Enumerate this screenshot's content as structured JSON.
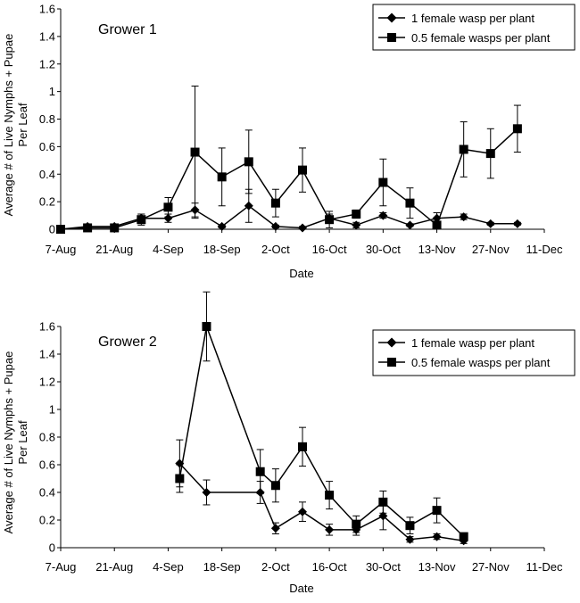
{
  "chart_data": [
    {
      "type": "line",
      "title": "Grower 1",
      "xlabel": "Date",
      "ylabel": "Average # of Live Nymphs + Pupae Per Leaf",
      "ylabel_lines": [
        "Average # of Live Nymphs + Pupae",
        "Per Leaf"
      ],
      "ylim": [
        0,
        1.6
      ],
      "yticks": [
        0,
        0.2,
        0.4,
        0.6,
        0.8,
        1,
        1.2,
        1.4,
        1.6
      ],
      "ytick_labels": [
        "0",
        "0.2",
        "0.4",
        "0.6",
        "0.8",
        "1",
        "1.2",
        "1.4",
        "1.6"
      ],
      "xticks": [
        "7-Aug",
        "21-Aug",
        "4-Sep",
        "18-Sep",
        "2-Oct",
        "16-Oct",
        "30-Oct",
        "13-Nov",
        "27-Nov",
        "11-Dec"
      ],
      "grid": false,
      "legend_position": "top-right",
      "series": [
        {
          "name": "1 female wasp per plant",
          "marker": "diamond",
          "x": [
            "7-Aug",
            "14-Aug",
            "21-Aug",
            "28-Aug",
            "4-Sep",
            "11-Sep",
            "18-Sep",
            "25-Sep",
            "2-Oct",
            "9-Oct",
            "16-Oct",
            "23-Oct",
            "30-Oct",
            "6-Nov",
            "13-Nov",
            "20-Nov",
            "27-Nov",
            "4-Dec",
            "11-Dec"
          ],
          "y": [
            0.0,
            0.02,
            0.02,
            0.08,
            0.08,
            0.14,
            0.02,
            0.17,
            0.02,
            0.01,
            0.08,
            0.03,
            0.1,
            0.03,
            0.08,
            0.09,
            0.04,
            0.04,
            null
          ],
          "err": [
            0.0,
            0.01,
            0.01,
            0.03,
            0.03,
            0.05,
            0.01,
            0.12,
            0.01,
            0.01,
            0.03,
            0.02,
            0.02,
            0.01,
            0.04,
            0.02,
            0.01,
            0.01,
            null
          ]
        },
        {
          "name": "0.5 female wasps per plant",
          "marker": "square",
          "x": [
            "7-Aug",
            "14-Aug",
            "21-Aug",
            "28-Aug",
            "4-Sep",
            "11-Sep",
            "18-Sep",
            "25-Sep",
            "2-Oct",
            "9-Oct",
            "16-Oct",
            "23-Oct",
            "30-Oct",
            "6-Nov",
            "13-Nov",
            "20-Nov",
            "27-Nov",
            "4-Dec",
            "11-Dec"
          ],
          "y": [
            0.0,
            0.01,
            0.01,
            0.07,
            0.16,
            0.56,
            0.38,
            0.49,
            0.19,
            0.43,
            0.07,
            0.11,
            0.34,
            0.19,
            0.03,
            0.58,
            0.55,
            0.73,
            null
          ],
          "err": [
            0.0,
            0.01,
            0.01,
            0.04,
            0.07,
            0.48,
            0.21,
            0.23,
            0.1,
            0.16,
            0.06,
            0.03,
            0.17,
            0.11,
            0.05,
            0.2,
            0.18,
            0.17,
            null
          ]
        }
      ]
    },
    {
      "type": "line",
      "title": "Grower 2",
      "xlabel": "Date",
      "ylabel": "Average # of Live Nymphs + Pupae Per Leaf",
      "ylabel_lines": [
        "Average # of Live Nymphs + Pupae",
        "Per Leaf"
      ],
      "ylim": [
        0,
        1.6
      ],
      "yticks": [
        0,
        0.2,
        0.4,
        0.6,
        0.8,
        1,
        1.2,
        1.4,
        1.6
      ],
      "ytick_labels": [
        "0",
        "0.2",
        "0.4",
        "0.6",
        "0.8",
        "1",
        "1.2",
        "1.4",
        "1.6"
      ],
      "xticks": [
        "7-Aug",
        "21-Aug",
        "4-Sep",
        "18-Sep",
        "2-Oct",
        "16-Oct",
        "30-Oct",
        "13-Nov",
        "27-Nov",
        "11-Dec"
      ],
      "grid": false,
      "legend_position": "top-right",
      "series": [
        {
          "name": "1 female wasp per plant",
          "marker": "diamond",
          "x": [
            "7-Sep",
            "14-Sep",
            "28-Sep",
            "2-Oct",
            "9-Oct",
            "16-Oct",
            "23-Oct",
            "30-Oct",
            "6-Nov",
            "13-Nov",
            "20-Nov"
          ],
          "y": [
            0.61,
            0.4,
            0.4,
            0.14,
            0.26,
            0.13,
            0.13,
            0.23,
            0.06,
            0.08,
            0.05
          ],
          "err": [
            0.17,
            0.09,
            0.08,
            0.04,
            0.07,
            0.04,
            0.04,
            0.1,
            0.02,
            0.02,
            0.02
          ]
        },
        {
          "name": "0.5 female wasps per plant",
          "marker": "square",
          "x": [
            "7-Sep",
            "14-Sep",
            "28-Sep",
            "2-Oct",
            "9-Oct",
            "16-Oct",
            "23-Oct",
            "30-Oct",
            "6-Nov",
            "13-Nov",
            "20-Nov"
          ],
          "y": [
            0.5,
            1.6,
            0.55,
            0.45,
            0.73,
            0.38,
            0.17,
            0.33,
            0.16,
            0.27,
            0.08
          ],
          "err": [
            0.1,
            0.25,
            0.16,
            0.12,
            0.14,
            0.1,
            0.06,
            0.08,
            0.06,
            0.09,
            0.02
          ]
        }
      ]
    }
  ]
}
